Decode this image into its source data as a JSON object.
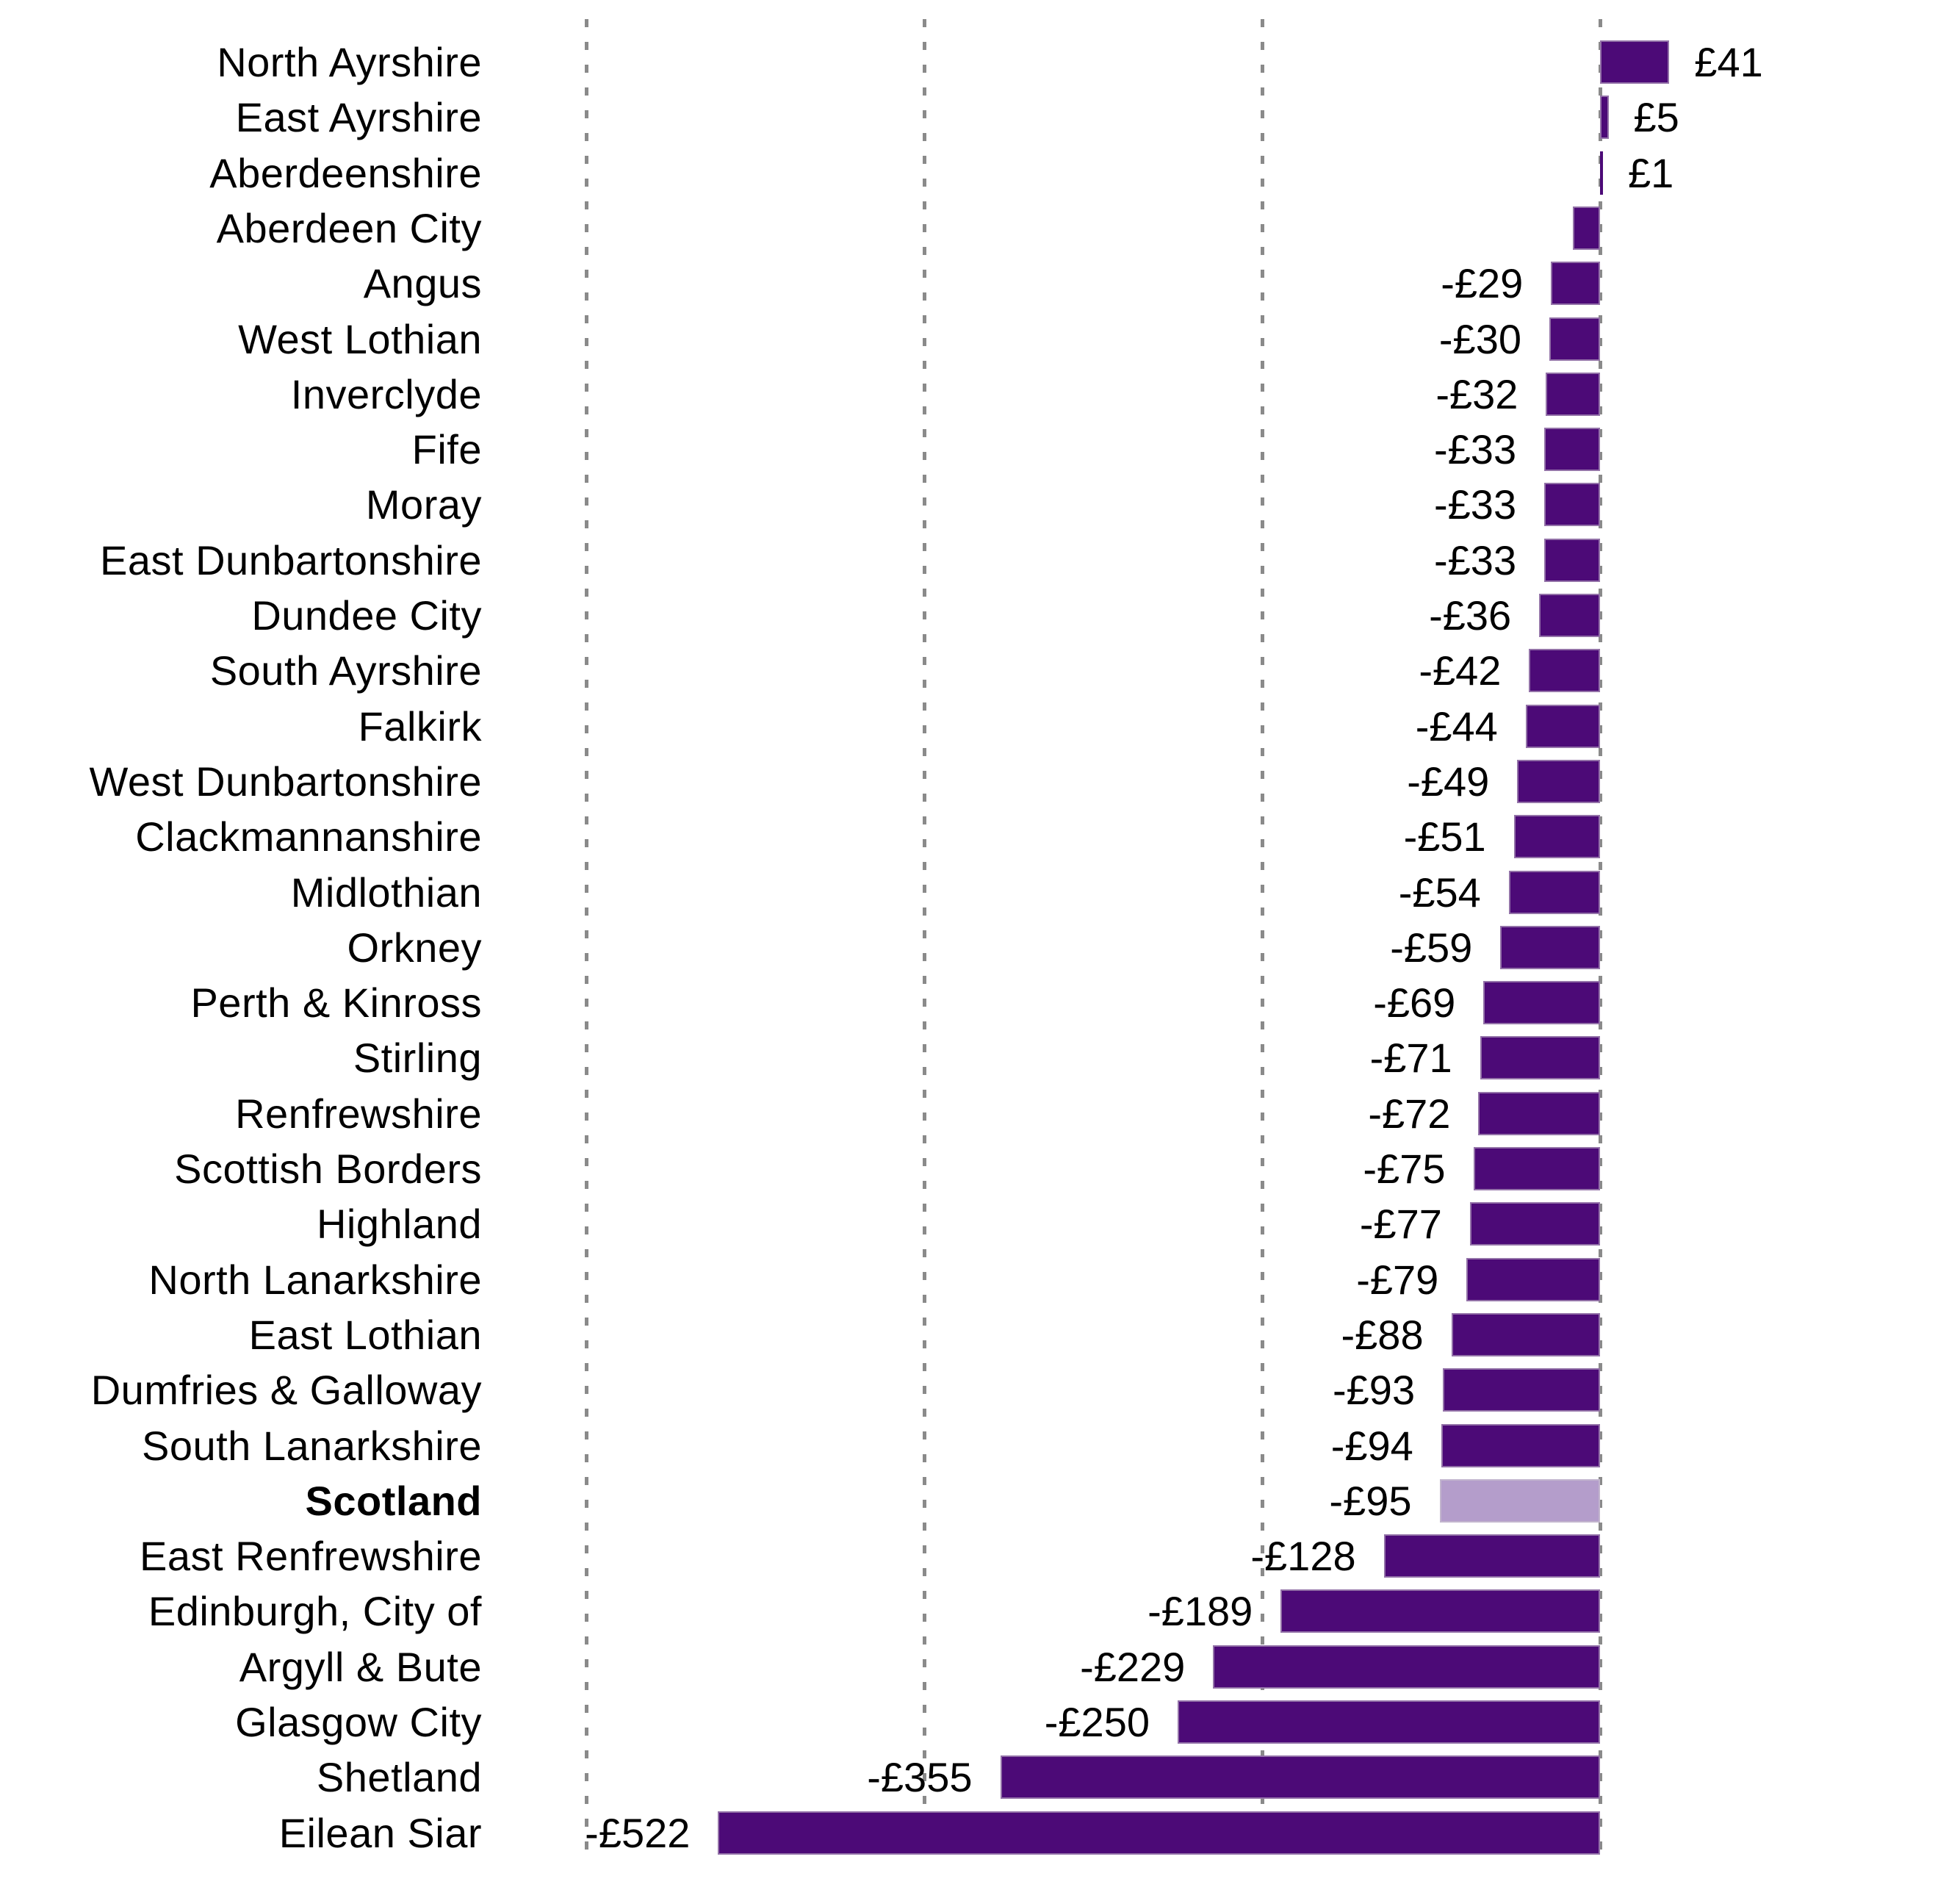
{
  "chart_data": {
    "type": "bar",
    "orientation": "horizontal",
    "title": "",
    "xlabel": "",
    "ylabel": "",
    "currency": "£",
    "categories": [
      "North Ayrshire",
      "East Ayrshire",
      "Aberdeenshire",
      "Aberdeen City",
      "Angus",
      "West Lothian",
      "Inverclyde",
      "Fife",
      "Moray",
      "East Dunbartonshire",
      "Dundee City",
      "South Ayrshire",
      "Falkirk",
      "West Dunbartonshire",
      "Clackmannanshire",
      "Midlothian",
      "Orkney",
      "Perth & Kinross",
      "Stirling",
      "Renfrewshire",
      "Scottish Borders",
      "Highland",
      "North Lanarkshire",
      "East Lothian",
      "Dumfries & Galloway",
      "South Lanarkshire",
      "Scotland",
      "East Renfrewshire",
      "Edinburgh, City of",
      "Argyll & Bute",
      "Glasgow City",
      "Shetland",
      "Eilean Siar"
    ],
    "values": [
      41,
      5,
      1,
      -16,
      -29,
      -30,
      -32,
      -33,
      -33,
      -33,
      -36,
      -42,
      -44,
      -49,
      -51,
      -54,
      -59,
      -69,
      -71,
      -72,
      -75,
      -77,
      -79,
      -88,
      -93,
      -94,
      -95,
      -128,
      -189,
      -229,
      -250,
      -355,
      -522
    ],
    "value_labels": [
      "£41",
      "£5",
      "£1",
      "",
      "-£29",
      "-£30",
      "-£32",
      "-£33",
      "-£33",
      "-£33",
      "-£36",
      "-£42",
      "-£44",
      "-£49",
      "-£51",
      "-£54",
      "-£59",
      "-£69",
      "-£71",
      "-£72",
      "-£75",
      "-£77",
      "-£79",
      "-£88",
      "-£93",
      "-£94",
      "-£95",
      "-£128",
      "-£189",
      "-£229",
      "-£250",
      "-£355",
      "-£522"
    ],
    "highlight_category": "Scotland",
    "highlight_index": 26,
    "xlim": [
      -600,
      100
    ],
    "gridline_values": [
      -600,
      -400,
      -200,
      0
    ],
    "grid_style": "dashed-vertical",
    "legend": "none",
    "colors": {
      "bar": "#4C0A77",
      "highlight_bar": "#B49DCB",
      "gridline": "#8A8A8A",
      "text": "#000000",
      "background": "#FFFFFF"
    }
  }
}
